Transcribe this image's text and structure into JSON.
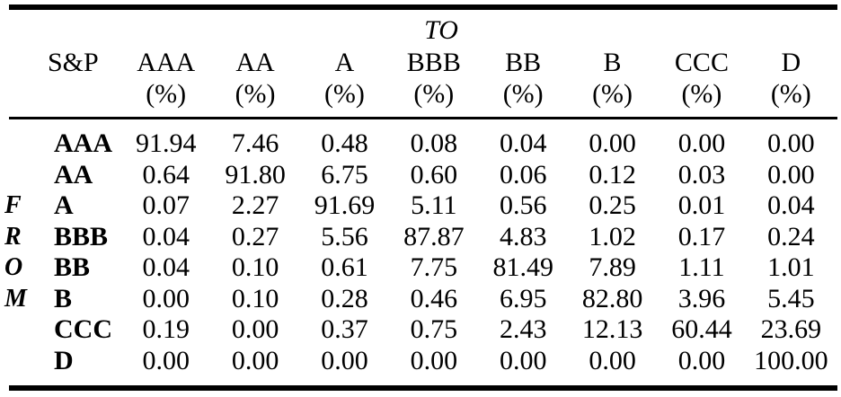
{
  "table": {
    "to_label": "TO",
    "from_letters": [
      "F",
      "R",
      "O",
      "M"
    ],
    "corner_header": "S&P",
    "unit_label": "(%)",
    "columns": [
      "AAA",
      "AA",
      "A",
      "BBB",
      "BB",
      "B",
      "CCC",
      "D"
    ],
    "rows": [
      {
        "label": "AAA",
        "values": [
          "91.94",
          "7.46",
          "0.48",
          "0.08",
          "0.04",
          "0.00",
          "0.00",
          "0.00"
        ]
      },
      {
        "label": "AA",
        "values": [
          "0.64",
          "91.80",
          "6.75",
          "0.60",
          "0.06",
          "0.12",
          "0.03",
          "0.00"
        ]
      },
      {
        "label": "A",
        "values": [
          "0.07",
          "2.27",
          "91.69",
          "5.11",
          "0.56",
          "0.25",
          "0.01",
          "0.04"
        ]
      },
      {
        "label": "BBB",
        "values": [
          "0.04",
          "0.27",
          "5.56",
          "87.87",
          "4.83",
          "1.02",
          "0.17",
          "0.24"
        ]
      },
      {
        "label": "BB",
        "values": [
          "0.04",
          "0.10",
          "0.61",
          "7.75",
          "81.49",
          "7.89",
          "1.11",
          "1.01"
        ]
      },
      {
        "label": "B",
        "values": [
          "0.00",
          "0.10",
          "0.28",
          "0.46",
          "6.95",
          "82.80",
          "3.96",
          "5.45"
        ]
      },
      {
        "label": "CCC",
        "values": [
          "0.19",
          "0.00",
          "0.37",
          "0.75",
          "2.43",
          "12.13",
          "60.44",
          "23.69"
        ]
      },
      {
        "label": "D",
        "values": [
          "0.00",
          "0.00",
          "0.00",
          "0.00",
          "0.00",
          "0.00",
          "0.00",
          "100.00"
        ]
      }
    ]
  }
}
